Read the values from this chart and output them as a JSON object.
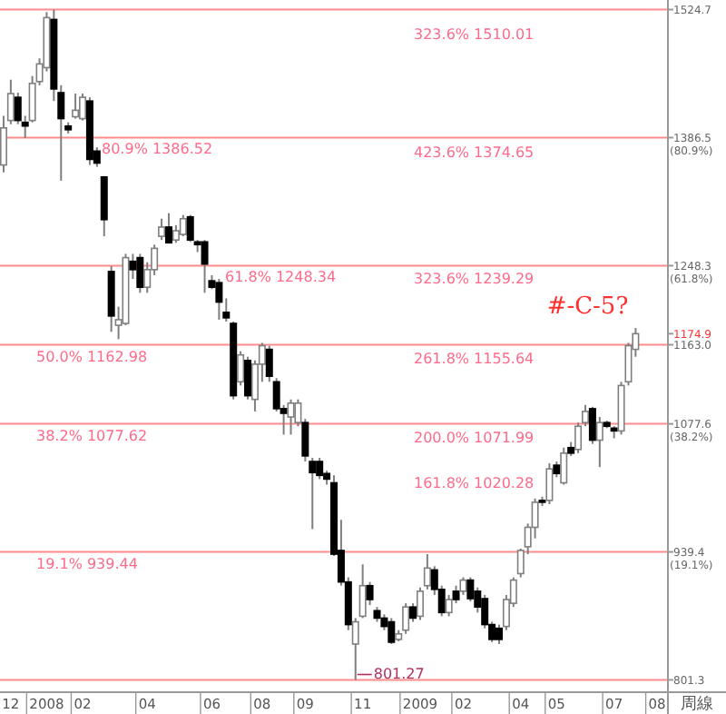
{
  "chart_data": {
    "type": "candlestick",
    "xlabel": "周線",
    "categories": [
      null,
      "12",
      null,
      null,
      null,
      null,
      "2008",
      null,
      null,
      null,
      null,
      "02",
      null,
      null,
      null,
      null,
      null,
      null,
      null,
      null,
      "04",
      null,
      null,
      null,
      null,
      null,
      null,
      null,
      null,
      "06",
      null,
      null,
      null,
      null,
      null,
      null,
      "08",
      null,
      null,
      null,
      null,
      null,
      "09",
      null,
      null,
      null,
      null,
      null,
      null,
      null,
      "11",
      null,
      null,
      null,
      null,
      null,
      null,
      null,
      "2009",
      null,
      null,
      null,
      null,
      null,
      "02",
      null,
      null,
      null,
      null,
      null,
      null,
      null,
      "04",
      null,
      null,
      null,
      null,
      "05",
      null,
      null,
      null,
      null,
      null,
      null,
      null,
      "07",
      null,
      null,
      null,
      null,
      null,
      "08",
      null
    ],
    "ohlc": [
      [
        1357,
        1410,
        1349,
        1397
      ],
      [
        1405,
        1449,
        1401,
        1434
      ],
      [
        1430,
        1435,
        1401,
        1405
      ],
      [
        1403,
        1410,
        1386,
        1399
      ],
      [
        1405,
        1453,
        1403,
        1445
      ],
      [
        1447,
        1472,
        1443,
        1466
      ],
      [
        1462,
        1522,
        1458,
        1516
      ],
      [
        1514,
        1524.7,
        1426,
        1439
      ],
      [
        1435,
        1443,
        1340,
        1407
      ],
      [
        1399,
        1403,
        1391,
        1395
      ],
      [
        1409,
        1434,
        1407,
        1416
      ],
      [
        1407,
        1434,
        1405,
        1430
      ],
      [
        1426,
        1430,
        1357,
        1363
      ],
      [
        1372,
        1376,
        1355,
        1359
      ],
      [
        1344,
        1345,
        1280,
        1298
      ],
      [
        1242,
        1248,
        1177,
        1194
      ],
      [
        1184,
        1204,
        1169,
        1190
      ],
      [
        1186,
        1261,
        1184,
        1257
      ],
      [
        1253,
        1261,
        1234,
        1244
      ],
      [
        1257,
        1261,
        1219,
        1225
      ],
      [
        1225,
        1252,
        1219,
        1244
      ],
      [
        1244,
        1271,
        1238,
        1267
      ],
      [
        1280,
        1299,
        1276,
        1290
      ],
      [
        1290,
        1305,
        1273,
        1273
      ],
      [
        1276,
        1292,
        1273,
        1286
      ],
      [
        1282,
        1303,
        1280,
        1299
      ],
      [
        1301,
        1303,
        1274,
        1276
      ],
      [
        1274,
        1276,
        1263,
        1271
      ],
      [
        1274,
        1276,
        1219,
        1250
      ],
      [
        1232,
        1238,
        1223,
        1225
      ],
      [
        1230,
        1234,
        1190,
        1209
      ],
      [
        1198,
        1213,
        1188,
        1192
      ],
      [
        1186,
        1188,
        1104,
        1108
      ],
      [
        1123,
        1156,
        1119,
        1152
      ],
      [
        1146,
        1150,
        1104,
        1108
      ],
      [
        1104,
        1146,
        1091,
        1142
      ],
      [
        1142,
        1165,
        1123,
        1162
      ],
      [
        1158,
        1162,
        1123,
        1129
      ],
      [
        1123,
        1127,
        1091,
        1094
      ],
      [
        1094,
        1098,
        1066,
        1089
      ],
      [
        1085,
        1104,
        1066,
        1100
      ],
      [
        1079,
        1104,
        1075,
        1100
      ],
      [
        1079,
        1083,
        1037,
        1043
      ],
      [
        1037,
        1041,
        964,
        1025
      ],
      [
        1037,
        1041,
        1018,
        1022
      ],
      [
        1024,
        1027,
        1012,
        1018
      ],
      [
        1014,
        1022,
        935,
        937
      ],
      [
        941,
        974,
        903,
        907
      ],
      [
        907,
        912,
        855,
        861
      ],
      [
        840,
        868,
        801.3,
        864
      ],
      [
        870,
        926,
        868,
        903
      ],
      [
        903,
        907,
        882,
        888
      ],
      [
        876,
        880,
        864,
        868
      ],
      [
        868,
        872,
        855,
        859
      ],
      [
        864,
        868,
        840,
        842
      ],
      [
        845,
        855,
        843,
        851
      ],
      [
        855,
        884,
        851,
        880
      ],
      [
        880,
        884,
        864,
        868
      ],
      [
        870,
        901,
        866,
        897
      ],
      [
        903,
        937,
        899,
        922
      ],
      [
        920,
        924,
        893,
        899
      ],
      [
        899,
        903,
        870,
        874
      ],
      [
        874,
        893,
        870,
        888
      ],
      [
        897,
        903,
        884,
        888
      ],
      [
        897,
        912,
        893,
        909
      ],
      [
        909,
        912,
        886,
        889
      ],
      [
        897,
        901,
        874,
        880
      ],
      [
        889,
        893,
        857,
        861
      ],
      [
        861,
        864,
        842,
        845
      ],
      [
        857,
        861,
        840,
        845
      ],
      [
        859,
        893,
        855,
        888
      ],
      [
        884,
        912,
        880,
        909
      ],
      [
        916,
        943,
        912,
        941
      ],
      [
        945,
        970,
        937,
        966
      ],
      [
        966,
        997,
        954,
        993
      ],
      [
        995,
        999,
        989,
        993
      ],
      [
        995,
        1035,
        991,
        1029
      ],
      [
        1033,
        1037,
        1020,
        1024
      ],
      [
        1014,
        1052,
        1012,
        1046
      ],
      [
        1052,
        1058,
        1043,
        1046
      ],
      [
        1050,
        1079,
        1046,
        1075
      ],
      [
        1079,
        1098,
        1075,
        1091
      ],
      [
        1094,
        1096,
        1056,
        1060
      ],
      [
        1060,
        1085,
        1031,
        1079
      ],
      [
        1079,
        1081,
        1073,
        1075
      ],
      [
        1073,
        1075,
        1062,
        1070
      ],
      [
        1070,
        1123,
        1066,
        1119
      ],
      [
        1123,
        1165,
        1119,
        1162
      ],
      [
        1158,
        1181,
        1150,
        1174.9
      ],
      null,
      null,
      null,
      null
    ],
    "ylim": [
      790,
      1535
    ],
    "yticks": [
      1524.7,
      {
        "value": 1386.5,
        "label": "1386.5 (80.9%)"
      },
      {
        "value": 1248.3,
        "label": "1248.3 (61.8%)"
      },
      1174.9,
      {
        "value": 1163.0,
        "label": "1163.0"
      },
      {
        "value": 1077.6,
        "label": "1077.6 (38.2%)"
      },
      {
        "value": 939.4,
        "label": "939.4 (19.1%)"
      },
      801.3
    ],
    "ref_lines": [
      {
        "axis": "y",
        "value": 1524.7,
        "color": "#ff8c8c"
      },
      {
        "axis": "y",
        "value": 1386.52,
        "label": "80.9% 1386.52",
        "color": "#ff8c8c"
      },
      {
        "axis": "y",
        "value": 1248.34,
        "label": "61.8% 1248.34",
        "color": "#ff8c8c"
      },
      {
        "axis": "y",
        "value": 1162.98,
        "label": "50.0% 1162.98",
        "color": "#ff8c8c"
      },
      {
        "axis": "y",
        "value": 1077.62,
        "label": "38.2% 1077.62",
        "color": "#ff8c8c"
      },
      {
        "axis": "y",
        "value": 939.44,
        "label": "19.1% 939.44",
        "color": "#ff8c8c"
      },
      {
        "axis": "y",
        "value": 801.27,
        "label": "801.27",
        "color": "#ff8c8c"
      }
    ],
    "annotations": [
      "323.6% 1510.01",
      "423.6% 1374.65",
      "323.6% 1239.29",
      "261.8% 1155.64",
      "200.0% 1071.99",
      "161.8% 1020.28",
      "#-C-5?"
    ]
  }
}
